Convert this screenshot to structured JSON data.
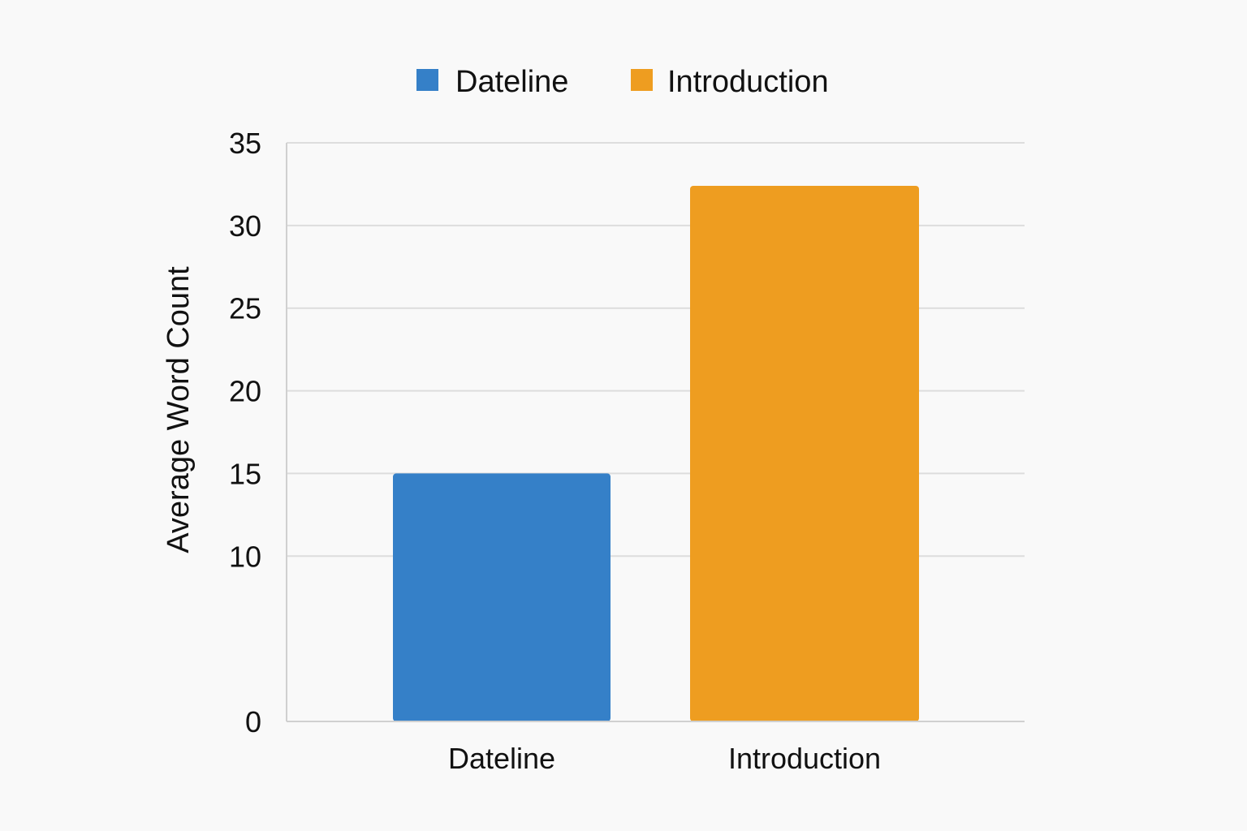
{
  "chart_data": {
    "type": "bar",
    "categories": [
      "Dateline",
      "Introduction"
    ],
    "series": [
      {
        "name": "Dateline",
        "values": [
          15,
          null
        ],
        "color": "#3580c8"
      },
      {
        "name": "Introduction",
        "values": [
          null,
          32.4
        ],
        "color": "#ee9d20"
      }
    ],
    "values": [
      15,
      32.4
    ],
    "colors": [
      "#3580c8",
      "#ee9d20"
    ],
    "ylabel": "Average Word Count",
    "xlabel": "",
    "ylim": [
      0,
      35
    ],
    "yticks": [
      0,
      10,
      15,
      20,
      25,
      30,
      35
    ],
    "gridlines": [
      10,
      15,
      20,
      25,
      30,
      35
    ],
    "grid": true,
    "legend": {
      "position": "top-center",
      "entries": [
        {
          "label": "Dateline",
          "color": "#3580c8"
        },
        {
          "label": "Introduction",
          "color": "#ee9d20"
        }
      ]
    }
  }
}
